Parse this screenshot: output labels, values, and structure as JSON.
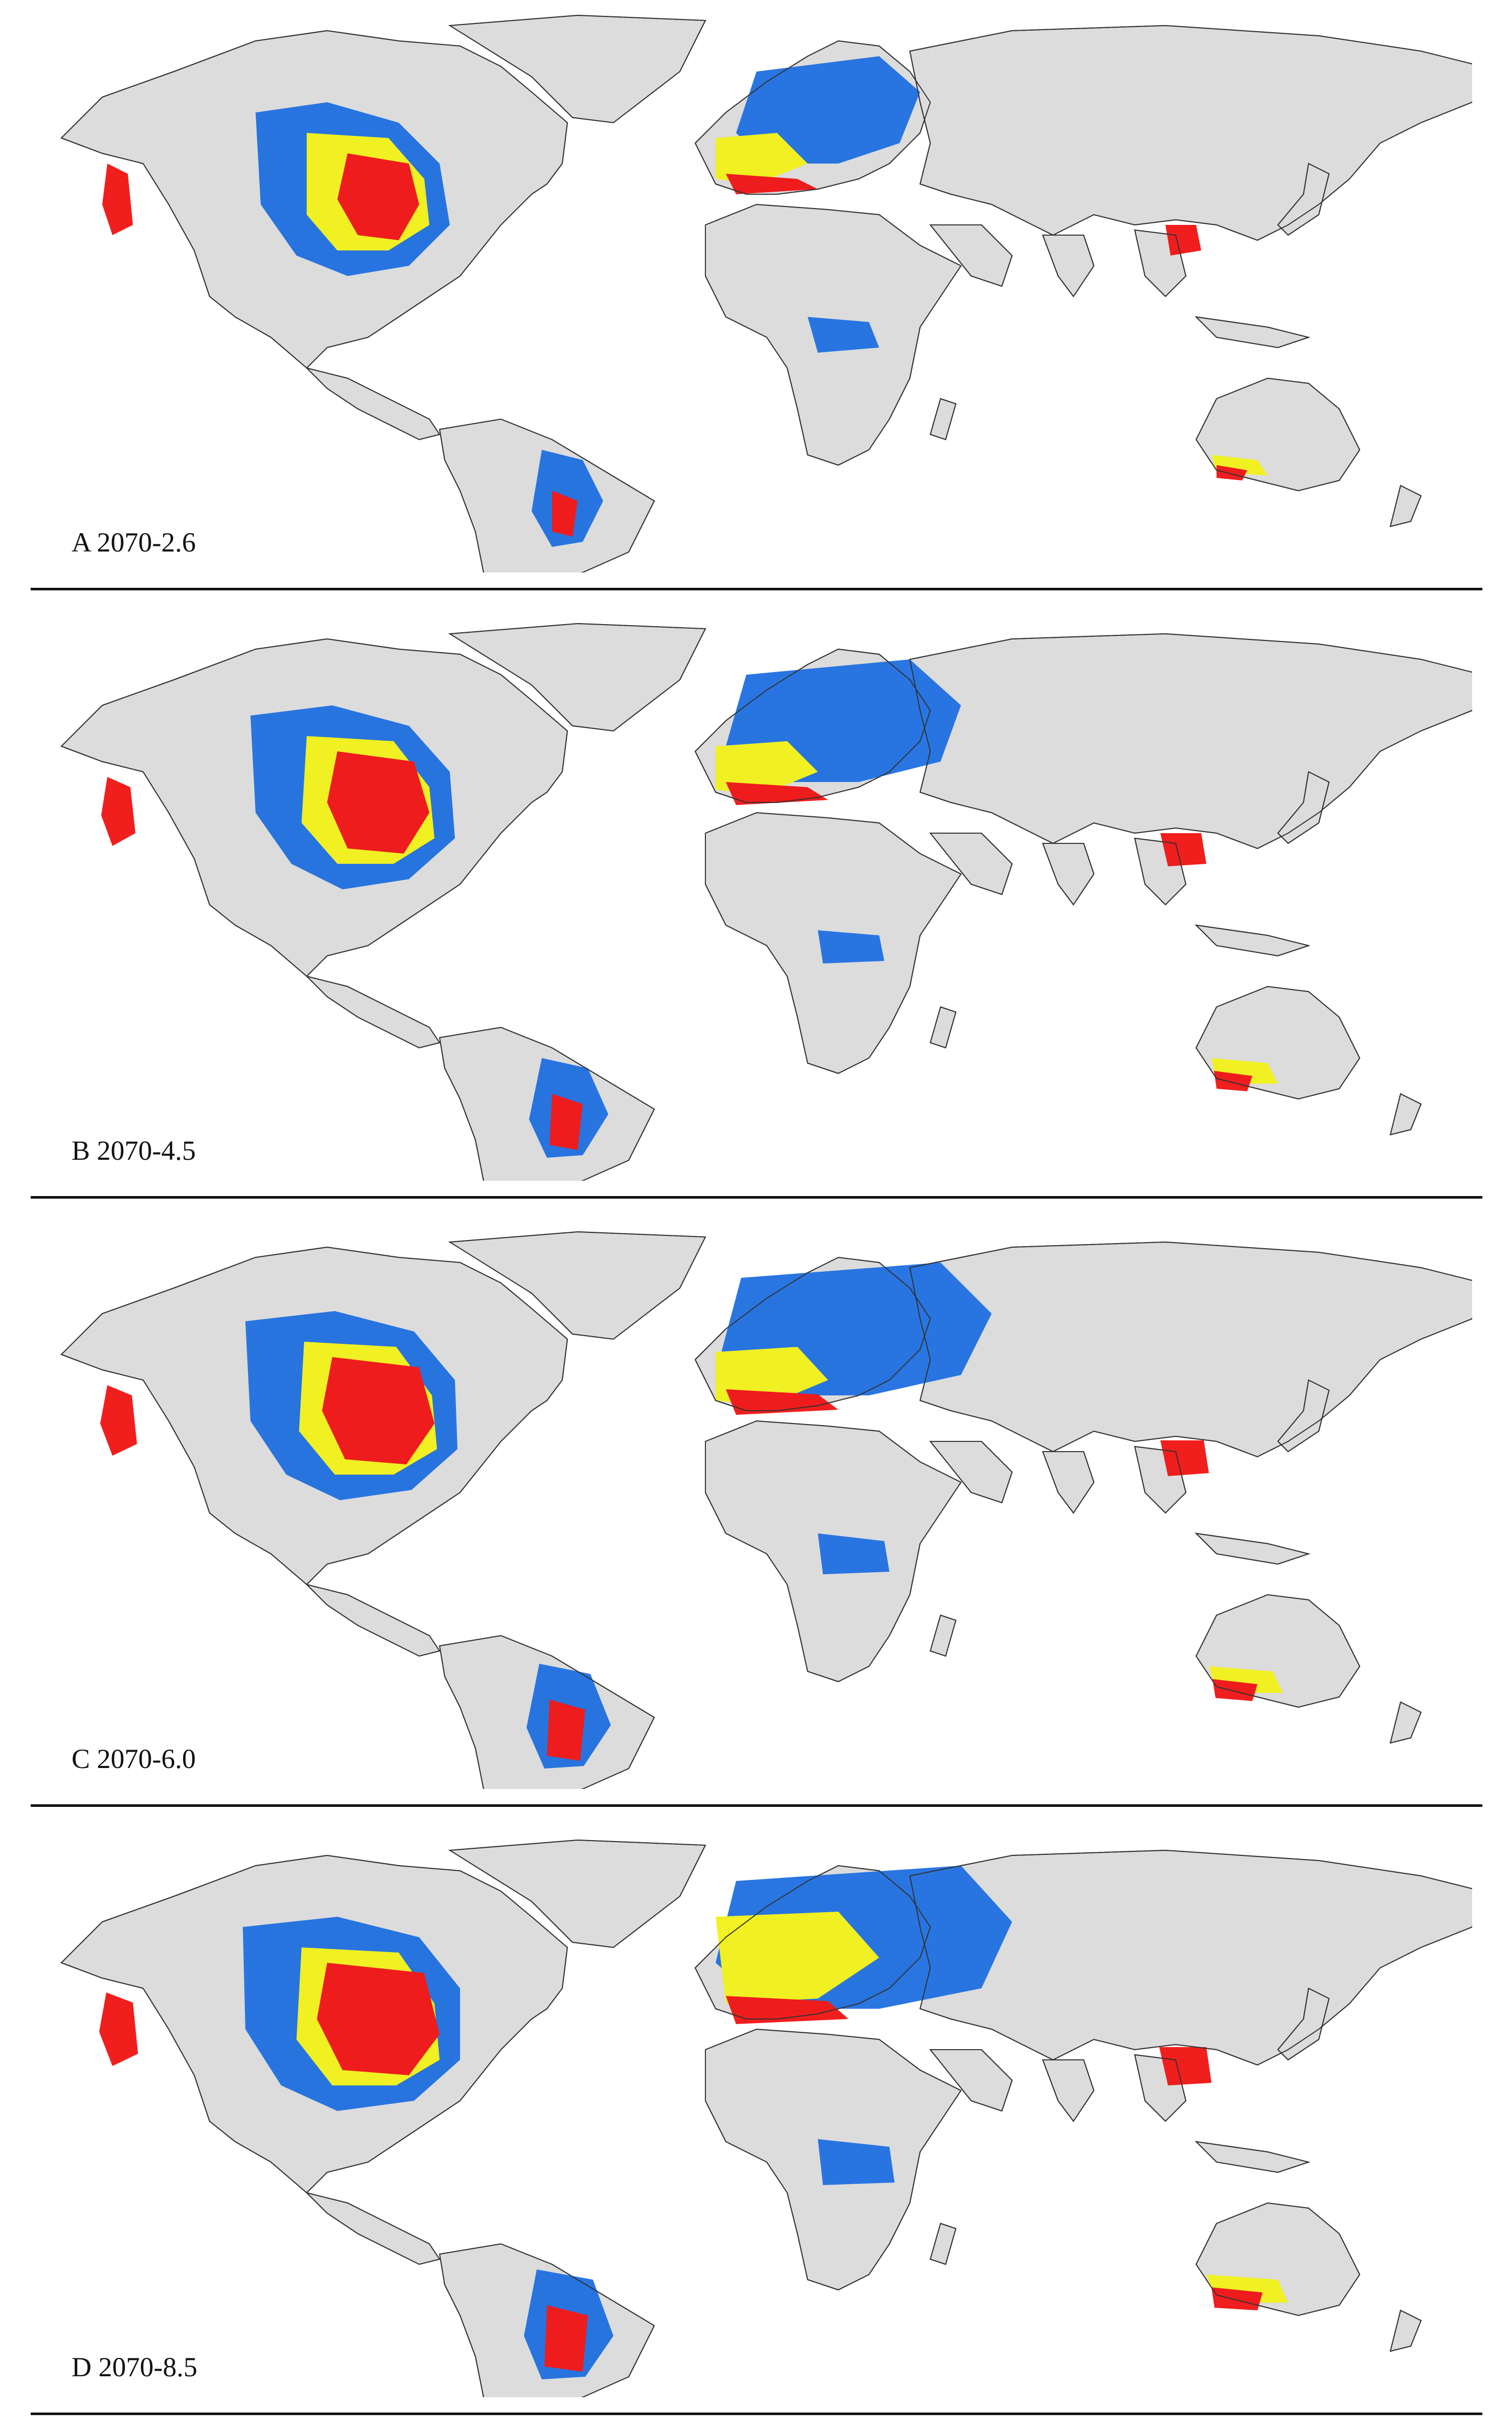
{
  "colors": {
    "land": "#dcdcdc",
    "border": "#333333",
    "blue": "#1e6fe0",
    "yellow": "#f2f21a",
    "red": "#f01212",
    "water": "#ffffff"
  },
  "panels": [
    {
      "id": "A",
      "label": "A 2070-2.6"
    },
    {
      "id": "B",
      "label": "B 2070-4.5"
    },
    {
      "id": "C",
      "label": "C 2070-6.0"
    },
    {
      "id": "D",
      "label": "D 2070-8.5"
    }
  ]
}
